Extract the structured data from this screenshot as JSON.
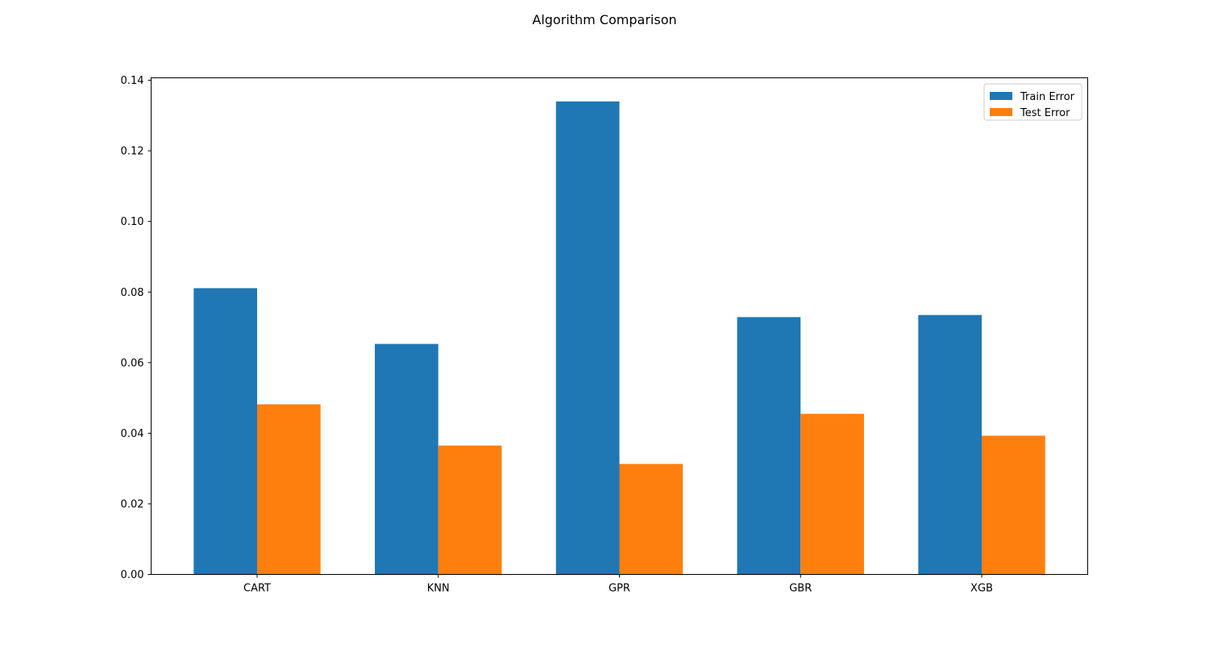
{
  "figure": {
    "title": "Algorithm Comparison"
  },
  "chart_data": {
    "type": "bar",
    "title": "Algorithm Comparison",
    "xlabel": "",
    "ylabel": "",
    "categories": [
      "CART",
      "KNN",
      "GPR",
      "GBR",
      "XGB"
    ],
    "series": [
      {
        "name": "Train Error",
        "color": "#1f77b4",
        "values": [
          0.0811,
          0.0653,
          0.134,
          0.0729,
          0.0735
        ]
      },
      {
        "name": "Test Error",
        "color": "#ff7f0e",
        "values": [
          0.0482,
          0.0365,
          0.0313,
          0.0455,
          0.0393
        ]
      }
    ],
    "ylim": [
      0,
      0.1407
    ],
    "yticks": [
      0.0,
      0.02,
      0.04,
      0.06,
      0.08,
      0.1,
      0.12,
      0.14
    ],
    "ytick_labels": [
      "0.00",
      "0.02",
      "0.04",
      "0.06",
      "0.08",
      "0.10",
      "0.12",
      "0.14"
    ],
    "grid": false,
    "legend": {
      "placement": "top-right"
    }
  }
}
